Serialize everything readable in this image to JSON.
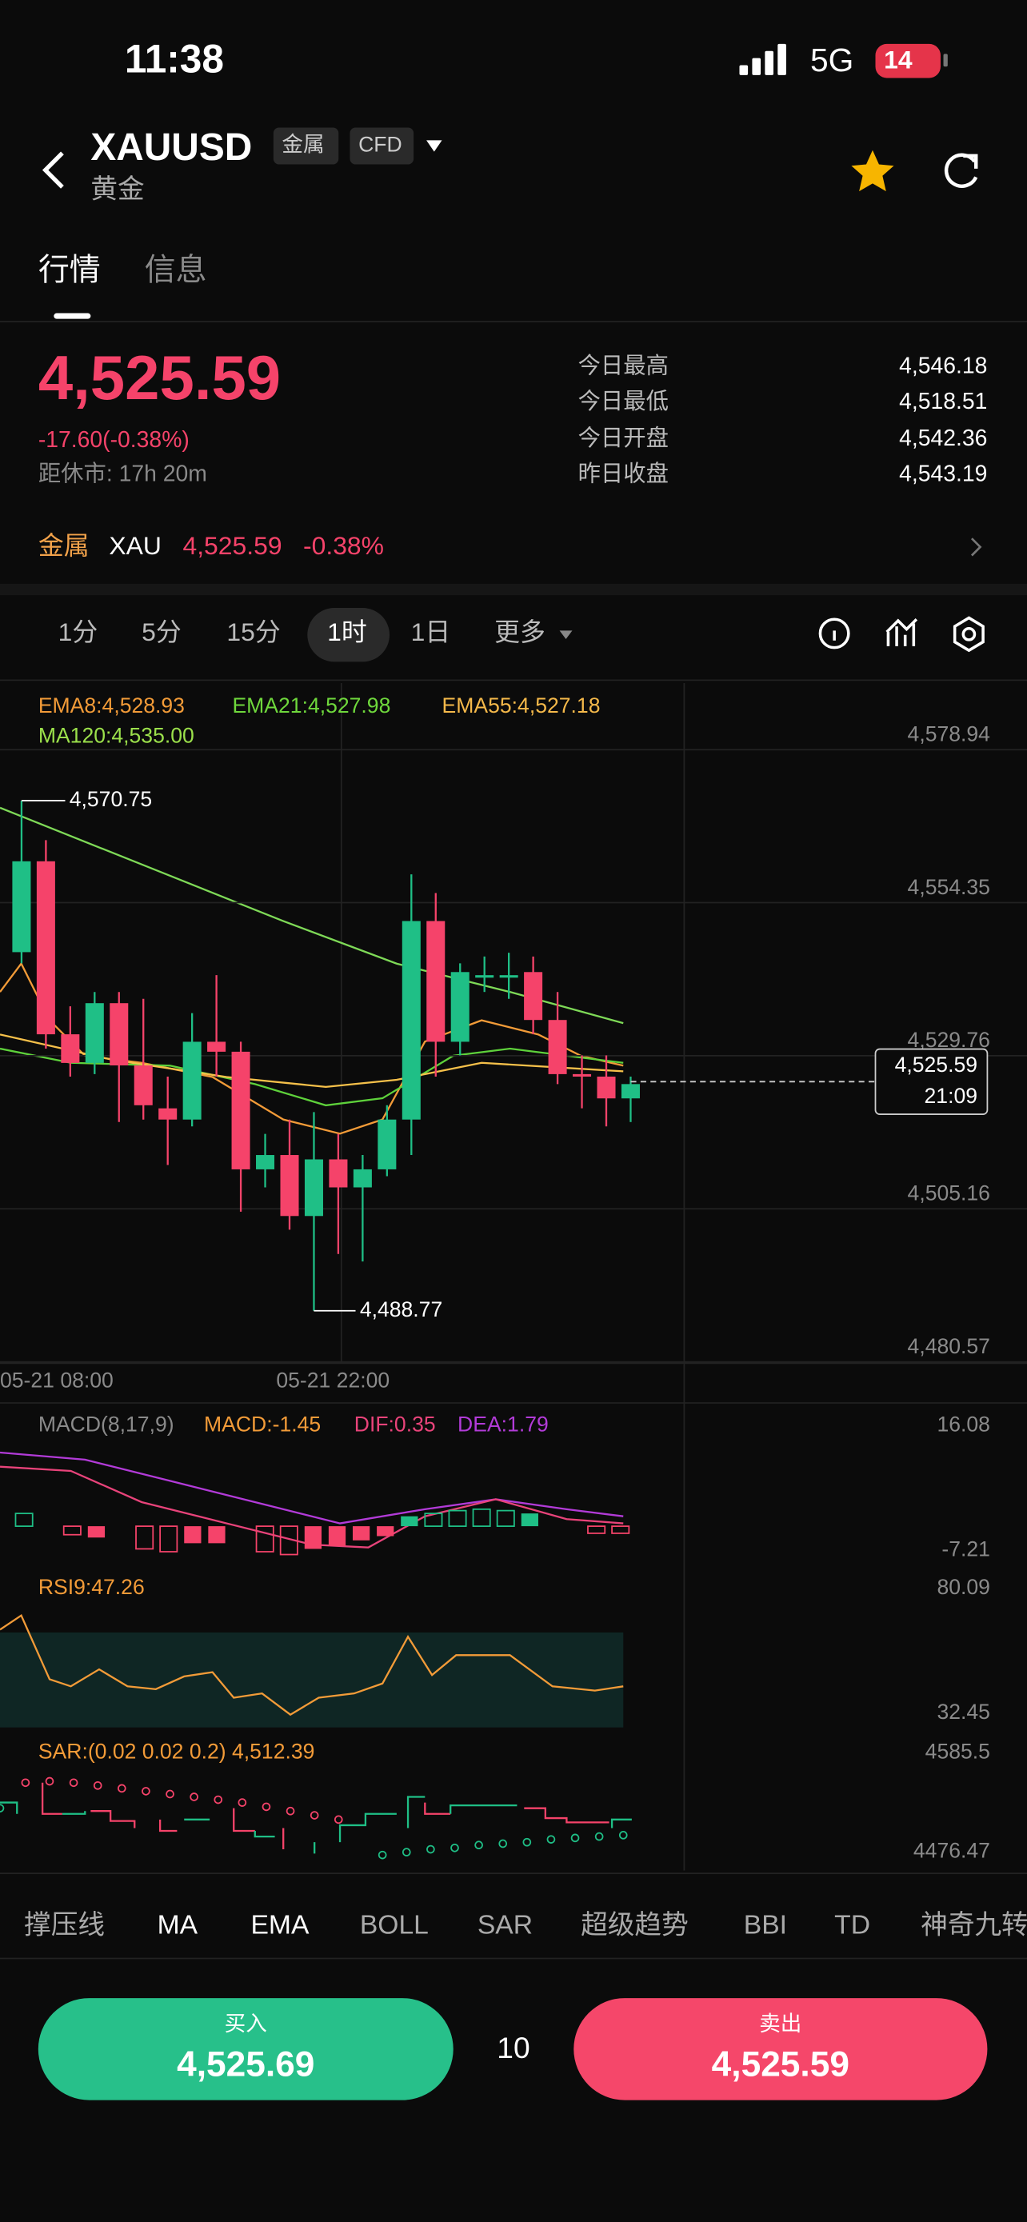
{
  "status": {
    "time": "11:38",
    "network": "5G",
    "battery": "14"
  },
  "header": {
    "symbol": "XAUUSD",
    "tags": [
      "金属",
      "CFD"
    ],
    "name": "黄金"
  },
  "tabs": [
    "行情",
    "信息"
  ],
  "quote": {
    "price": "4,525.59",
    "change": "-17.60(-0.38%)",
    "close_time": "距休市: 17h 20m",
    "stats": [
      {
        "label": "今日最高",
        "value": "4,546.18"
      },
      {
        "label": "今日最低",
        "value": "4,518.51"
      },
      {
        "label": "今日开盘",
        "value": "4,542.36"
      },
      {
        "label": "昨日收盘",
        "value": "4,543.19"
      }
    ]
  },
  "related": {
    "category": "金属",
    "symbol": "XAU",
    "price": "4,525.59",
    "change": "-0.38%"
  },
  "intervals": [
    "1分",
    "5分",
    "15分",
    "1时",
    "1日",
    "更多"
  ],
  "legend": [
    "EMA8:4,528.93",
    "EMA21:4,527.98",
    "EMA55:4,527.18",
    "MA120:4,535.00"
  ],
  "chart_data": {
    "type": "candlestick",
    "ylim": [
      4480.57,
      4578.94
    ],
    "yticks": [
      {
        "value": 4480.57,
        "label": "4,480.57"
      },
      {
        "value": 4505.16,
        "label": "4,505.16"
      },
      {
        "value": 4529.76,
        "label": "4,529.76"
      },
      {
        "value": 4554.35,
        "label": "4,554.35"
      },
      {
        "value": 4578.94,
        "label": "4,578.94"
      }
    ],
    "grid": true,
    "x_labels": [
      "05-21 08:00",
      "05-21 22:00"
    ],
    "open": [
      4546.4,
      4561.0,
      4533.2,
      4528.6,
      4538.2,
      4528.2,
      4521.3,
      4519.5,
      4532.0,
      4530.4,
      4511.5,
      4513.8,
      4504.0,
      4513.1,
      4508.6,
      4511.5,
      4519.5,
      4551.4,
      4532.0,
      4542.3,
      4542.3,
      4543.2,
      4535.5,
      4526.8,
      4526.4,
      4522.9
    ],
    "high": [
      4570.75,
      4564.4,
      4537.7,
      4540.0,
      4540.0,
      4538.9,
      4526.4,
      4536.6,
      4542.7,
      4532.0,
      4517.2,
      4519.5,
      4520.7,
      4517.2,
      4513.8,
      4521.8,
      4558.9,
      4555.9,
      4544.6,
      4545.7,
      4546.3,
      4545.7,
      4540.0,
      4529.8,
      4529.8,
      4526.4
    ],
    "low": [
      4544.6,
      4530.9,
      4526.4,
      4526.8,
      4519.1,
      4519.5,
      4512.2,
      4518.4,
      4526.4,
      4504.7,
      4508.6,
      4501.8,
      4488.77,
      4497.9,
      4496.7,
      4510.4,
      4513.8,
      4526.4,
      4529.8,
      4540.0,
      4538.9,
      4533.2,
      4525.2,
      4521.3,
      4518.4,
      4519.1
    ],
    "close": [
      4561.0,
      4533.2,
      4528.6,
      4538.2,
      4528.2,
      4521.8,
      4519.5,
      4532.0,
      4530.4,
      4511.5,
      4513.8,
      4504.0,
      4513.1,
      4508.6,
      4511.5,
      4519.5,
      4551.4,
      4532.0,
      4543.2,
      4542.7,
      4542.7,
      4535.5,
      4526.8,
      4526.4,
      4522.9,
      4525.2
    ],
    "up_color": "#1fbf86",
    "down_color": "#f5436a",
    "high_label": {
      "value": 4570.75,
      "label": "4,570.75"
    },
    "low_label": {
      "value": 4488.77,
      "label": "4,488.77"
    },
    "last_price": {
      "value": 4525.59,
      "label": "4,525.59"
    },
    "last_time": "21:09"
  },
  "macd": {
    "label": "MACD(8,17,9)",
    "macd": "MACD:-1.45",
    "dif": "DIF:0.35",
    "dea": "DEA:1.79",
    "max": "16.08",
    "min": "-7.21"
  },
  "rsi": {
    "label": "RSI9:47.26",
    "max": "80.09",
    "min": "32.45"
  },
  "sar": {
    "label": "SAR:(0.02 0.02 0.2) 4,512.39",
    "max": "4585.5",
    "min": "4476.47"
  },
  "indicator_tabs": [
    "撑压线",
    "MA",
    "EMA",
    "BOLL",
    "SAR",
    "超级趋势",
    "BBI",
    "TD",
    "神奇九转"
  ],
  "trade": {
    "buy_label": "买入",
    "buy_price": "4,525.69",
    "spread": "10",
    "sell_label": "卖出",
    "sell_price": "4,525.59"
  }
}
